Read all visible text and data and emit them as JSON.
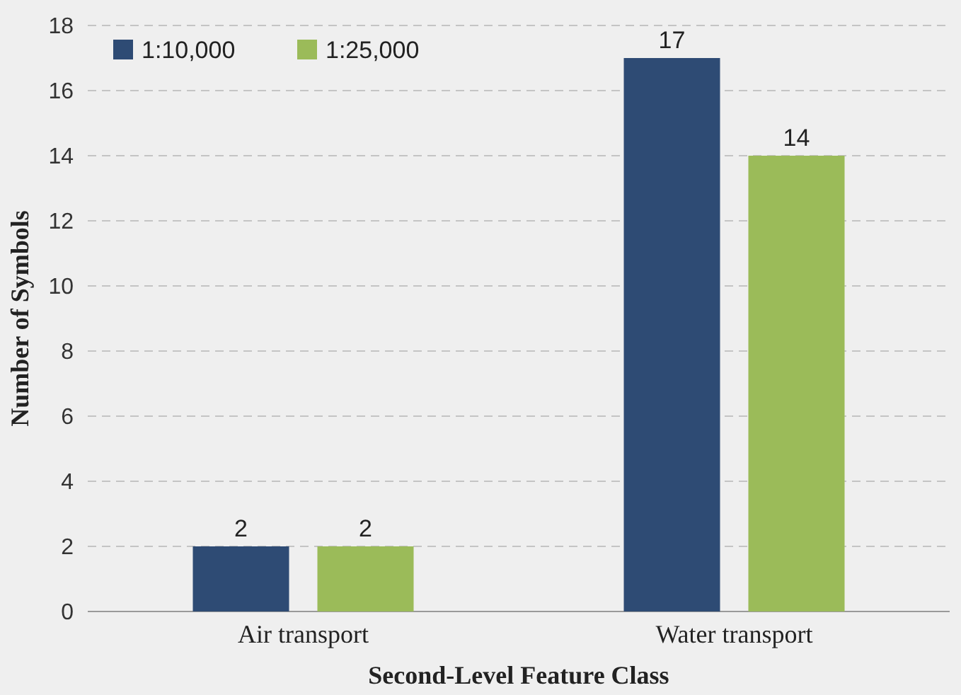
{
  "chart_data": {
    "type": "bar",
    "xlabel": "Second-Level Feature Class",
    "ylabel": "Number of Symbols",
    "categories": [
      "Air transport",
      "Water transport"
    ],
    "series": [
      {
        "name": "1:10,000",
        "color": "#2e4b74",
        "values": [
          2,
          17
        ]
      },
      {
        "name": "1:25,000",
        "color": "#9bbb59",
        "values": [
          2,
          14
        ]
      }
    ],
    "ylim": [
      0,
      18
    ],
    "yticks": [
      0,
      2,
      4,
      6,
      8,
      10,
      12,
      14,
      16,
      18
    ],
    "grid": "y",
    "legend": "top left",
    "data_labels": true
  }
}
